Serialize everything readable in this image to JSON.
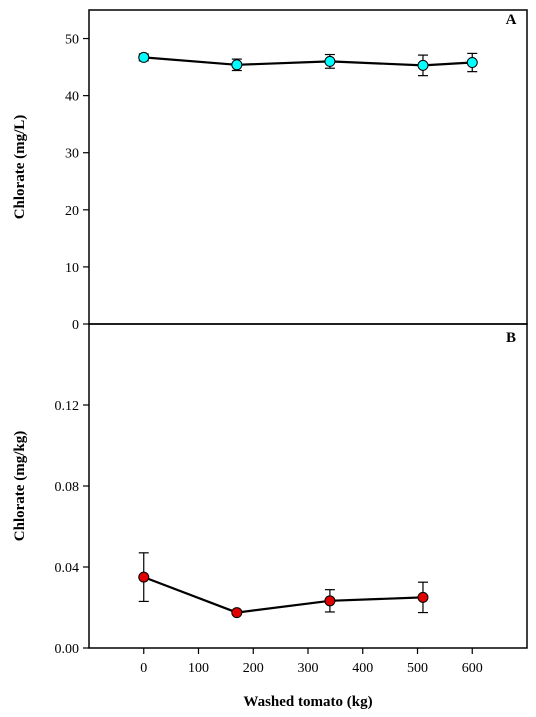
{
  "chart_data": [
    {
      "type": "line",
      "panel_label": "A",
      "ylabel": "Chlorate (mg/L)",
      "xlabel": "Washed tomato (kg)",
      "xlim": [
        -100,
        700
      ],
      "ylim": [
        0,
        55
      ],
      "yticks": [
        "0",
        "10",
        "20",
        "30",
        "40",
        "50"
      ],
      "ytick_values": [
        0,
        10,
        20,
        30,
        40,
        50
      ],
      "xticks": [
        "0",
        "100",
        "200",
        "300",
        "400",
        "500",
        "600"
      ],
      "xtick_values": [
        0,
        100,
        200,
        300,
        400,
        500,
        600
      ],
      "series": [
        {
          "marker": "circle",
          "color": "#00ffff",
          "x": [
            0,
            170,
            340,
            510,
            600
          ],
          "y": [
            46.7,
            45.4,
            46.0,
            45.3,
            45.8
          ],
          "error": [
            0.6,
            1.0,
            1.2,
            1.8,
            1.6
          ]
        }
      ]
    },
    {
      "type": "line",
      "panel_label": "B",
      "ylabel": "Chlorate (mg/kg)",
      "xlabel": "Washed tomato (kg)",
      "xlim": [
        -100,
        700
      ],
      "ylim": [
        0,
        0.16
      ],
      "yticks": [
        "0.00",
        "0.04",
        "0.08",
        "0.12"
      ],
      "ytick_values": [
        0,
        0.04,
        0.08,
        0.12
      ],
      "xticks": [
        "0",
        "100",
        "200",
        "300",
        "400",
        "500",
        "600"
      ],
      "xtick_values": [
        0,
        100,
        200,
        300,
        400,
        500,
        600
      ],
      "series": [
        {
          "marker": "circle",
          "color": "#e00000",
          "x": [
            0,
            170,
            340,
            510
          ],
          "y": [
            0.035,
            0.0175,
            0.0233,
            0.025
          ],
          "error": [
            0.012,
            0.001,
            0.0055,
            0.0075
          ]
        }
      ]
    }
  ]
}
